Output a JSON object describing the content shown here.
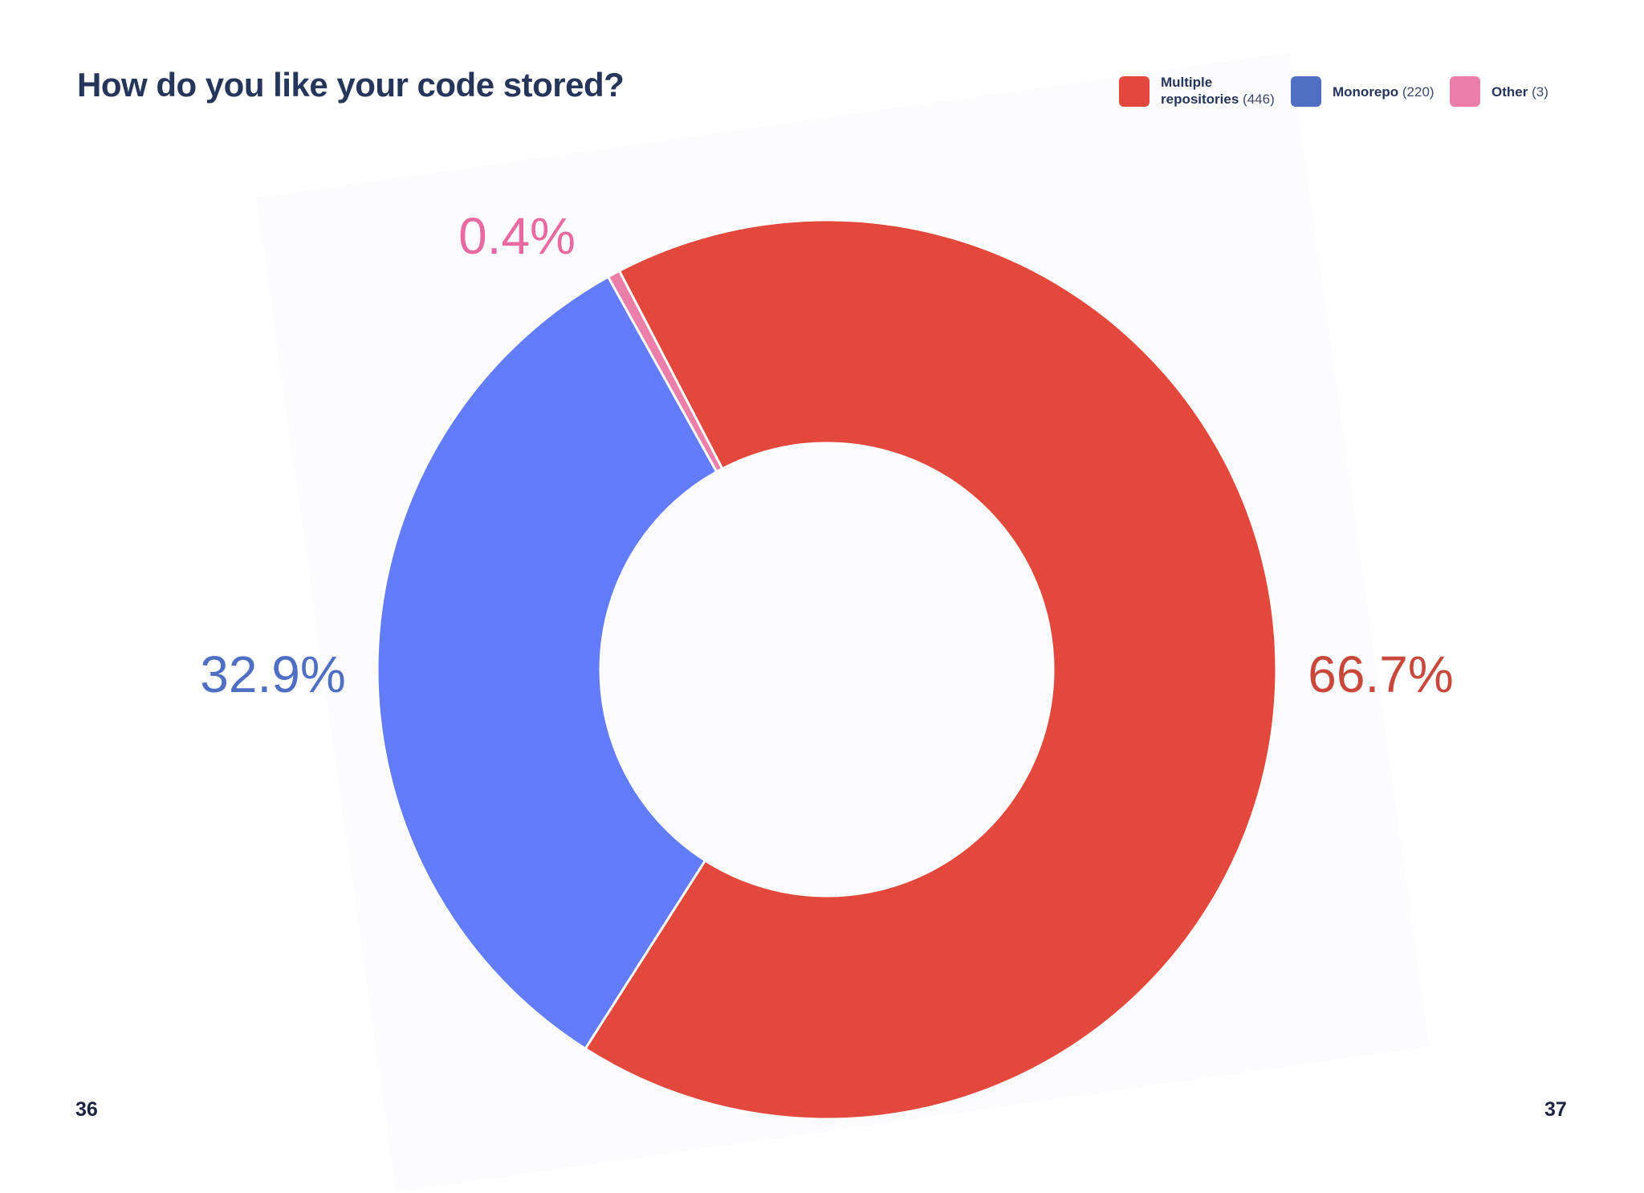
{
  "title": "How do you like your code stored?",
  "pages": {
    "left": "36",
    "right": "37"
  },
  "colors": {
    "multiple": "#e2483b",
    "monorepo": "#627cfb",
    "other": "#ec7fa7",
    "legend_monorepo": "#4f6fc2",
    "label_monorepo": "#4f6fc2",
    "label_multiple": "#c9483c",
    "label_other": "#e86aa0"
  },
  "legend": [
    {
      "name": "Multiple repositories",
      "count": "(446)"
    },
    {
      "name": "Monorepo",
      "count": "(220)"
    },
    {
      "name": "Other",
      "count": "(3)"
    }
  ],
  "chart_data": {
    "type": "pie",
    "title": "How do you like your code stored?",
    "donut": true,
    "legend_position": "top-right",
    "categories": [
      "Multiple repositories",
      "Monorepo",
      "Other"
    ],
    "values": [
      446,
      220,
      3
    ],
    "percent_labels": [
      "66.7%",
      "32.9%",
      "0.4%"
    ]
  }
}
